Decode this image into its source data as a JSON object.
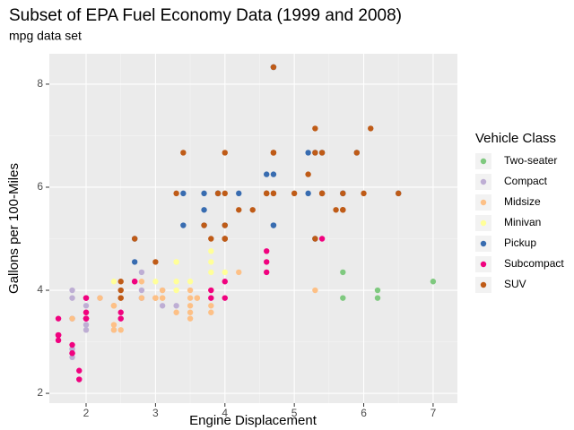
{
  "chart_data": {
    "type": "scatter",
    "title": "Subset of EPA Fuel Economy Data (1999 and 2008)",
    "subtitle": "mpg data set",
    "x_label": "Engine Displacement",
    "y_label": "Gallons per 100-Miles",
    "legend_title": "Vehicle Class",
    "legend_position": "right",
    "grid": true,
    "xlim": [
      1.47,
      7.35
    ],
    "ylim": [
      1.81,
      8.59
    ],
    "xticks": [
      2,
      3,
      4,
      5,
      6,
      7
    ],
    "yticks": [
      2,
      4,
      6,
      8
    ],
    "series": [
      {
        "name": "Two-seater",
        "color": "#7fc97f",
        "x": [
          5.7,
          5.7,
          6.2,
          6.2,
          7.0
        ],
        "y": [
          3.85,
          4.35,
          3.85,
          4.0,
          4.17
        ]
      },
      {
        "name": "Compact",
        "color": "#beaed4",
        "x": [
          1.8,
          1.8,
          2.0,
          2.0,
          2.8,
          2.8,
          3.1,
          1.8,
          1.8,
          2.0,
          2.0,
          2.8,
          3.1,
          1.9,
          2.0,
          2.0,
          2.5,
          2.8,
          1.8,
          1.8,
          1.8,
          2.2,
          2.4,
          3.0,
          3.3,
          2.5,
          2.5,
          2.4
        ],
        "y": [
          3.45,
          3.45,
          3.23,
          3.33,
          3.85,
          3.85,
          3.7,
          3.85,
          4.0,
          3.57,
          3.7,
          4.0,
          4.0,
          2.27,
          3.45,
          3.57,
          3.45,
          4.35,
          2.86,
          2.7,
          2.86,
          3.85,
          3.23,
          3.85,
          3.7,
          3.85,
          4.0,
          3.7
        ]
      },
      {
        "name": "Midsize",
        "color": "#fdc086",
        "x": [
          2.8,
          3.1,
          4.2,
          2.4,
          2.4,
          3.1,
          3.5,
          3.6,
          3.1,
          3.8,
          3.8,
          3.8,
          5.3,
          2.4,
          3.0,
          3.5,
          2.5,
          3.5,
          3.0,
          3.5,
          2.4,
          2.5,
          3.3,
          2.2,
          2.4,
          3.0,
          3.5,
          1.8,
          2.0,
          2.8,
          3.6
        ],
        "y": [
          4.17,
          4.0,
          4.35,
          3.7,
          3.33,
          3.85,
          3.45,
          3.85,
          3.85,
          3.7,
          4.0,
          3.57,
          4.0,
          3.7,
          3.85,
          3.85,
          3.23,
          3.7,
          3.85,
          4.0,
          3.7,
          3.85,
          3.57,
          3.85,
          3.23,
          3.85,
          3.57,
          3.45,
          3.57,
          3.85,
          3.85
        ]
      },
      {
        "name": "Minivan",
        "color": "#ffff99",
        "x": [
          2.4,
          3.0,
          3.3,
          3.3,
          3.3,
          3.8,
          3.8,
          4.0,
          3.3,
          3.5,
          3.8
        ],
        "y": [
          4.17,
          4.17,
          4.55,
          4.55,
          4.17,
          4.55,
          4.76,
          4.35,
          4.0,
          4.17,
          4.35
        ]
      },
      {
        "name": "Pickup",
        "color": "#386cb0",
        "x": [
          3.7,
          3.7,
          3.9,
          3.9,
          4.7,
          4.7,
          4.7,
          5.2,
          5.2,
          3.7,
          4.7,
          4.7,
          5.7,
          5.9,
          4.2,
          4.6,
          5.4,
          5.4,
          5.3,
          5.3,
          5.7,
          6.5,
          2.7,
          2.7,
          3.4,
          3.4,
          4.0,
          4.0
        ],
        "y": [
          5.26,
          5.56,
          5.88,
          5.88,
          5.26,
          5.26,
          8.33,
          5.88,
          6.67,
          5.88,
          8.33,
          6.25,
          5.88,
          6.67,
          5.88,
          6.25,
          6.67,
          5.88,
          5.0,
          6.67,
          5.88,
          5.88,
          5.0,
          4.55,
          5.88,
          5.26,
          5.0,
          5.26
        ]
      },
      {
        "name": "Subcompact",
        "color": "#f0027f",
        "x": [
          1.6,
          1.6,
          1.6,
          1.6,
          1.6,
          1.8,
          1.8,
          1.8,
          2.0,
          1.9,
          1.9,
          2.0,
          2.0,
          2.5,
          2.5,
          2.0,
          2.0,
          2.7,
          2.7,
          3.8,
          3.8,
          4.0,
          4.0,
          4.6,
          4.6,
          4.6,
          5.4,
          2.0
        ],
        "y": [
          3.03,
          3.13,
          3.13,
          3.45,
          3.13,
          2.94,
          2.78,
          2.78,
          3.45,
          2.27,
          2.44,
          3.45,
          3.85,
          3.57,
          3.45,
          3.85,
          3.45,
          4.17,
          4.17,
          3.85,
          4.0,
          3.85,
          4.17,
          4.76,
          4.55,
          4.35,
          5.0,
          3.57
        ]
      },
      {
        "name": "SUV",
        "color": "#bf5b17",
        "x": [
          4.7,
          5.7,
          4.0,
          4.2,
          4.4,
          4.6,
          3.0,
          3.7,
          4.0,
          4.7,
          4.7,
          5.7,
          6.1,
          3.9,
          4.7,
          4.7,
          5.2,
          5.7,
          5.9,
          4.0,
          4.6,
          5.0,
          5.4,
          5.4,
          2.7,
          3.4,
          4.0,
          4.7,
          5.3,
          5.3,
          5.7,
          6.0,
          3.3,
          3.8,
          4.0,
          5.6,
          2.5,
          2.5,
          4.6,
          5.4,
          5.3,
          6.5,
          2.5,
          4.0
        ],
        "y": [
          6.67,
          5.56,
          6.67,
          5.56,
          5.56,
          5.88,
          4.55,
          5.26,
          5.0,
          5.88,
          6.67,
          5.56,
          7.14,
          5.88,
          6.67,
          8.33,
          6.25,
          5.56,
          6.67,
          5.26,
          5.88,
          5.88,
          6.67,
          5.88,
          5.0,
          6.67,
          5.0,
          5.88,
          5.0,
          7.14,
          5.88,
          5.88,
          5.88,
          5.0,
          5.0,
          5.56,
          4.0,
          3.85,
          5.88,
          5.88,
          6.67,
          5.88,
          4.17,
          5.88
        ]
      }
    ]
  }
}
